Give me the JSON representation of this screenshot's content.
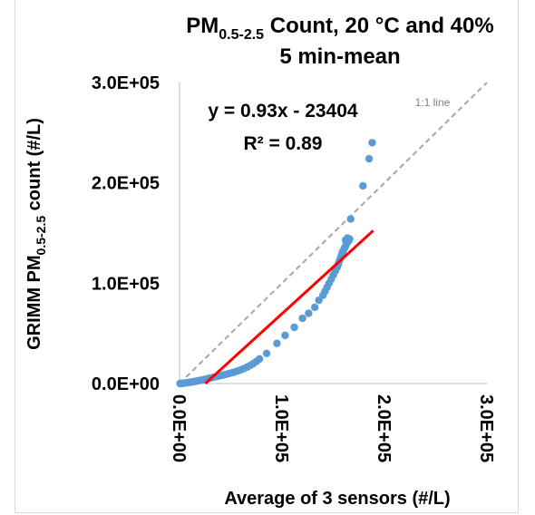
{
  "chart_data": {
    "type": "scatter",
    "title": {
      "line1_prefix": "PM",
      "line1_sub": "0.5-2.5",
      "line1_suffix": " Count, 20 °C and 40%",
      "line2": "5 min-mean"
    },
    "xlabel": "Average of 3 sensors (#/L)",
    "ylabel": {
      "prefix": "GRIMM PM",
      "sub": "0.5-2.5",
      "suffix": " count (#/L)"
    },
    "xlim": [
      0,
      300000
    ],
    "ylim": [
      0,
      300000
    ],
    "x_ticks": [
      0,
      100000,
      200000,
      300000
    ],
    "x_tick_labels": [
      "0.0E+00",
      "1.0E+05",
      "2.0E+05",
      "3.0E+05"
    ],
    "y_ticks": [
      0,
      100000,
      200000,
      300000
    ],
    "y_tick_labels": [
      "0.0E+00",
      "1.0E+05",
      "2.0E+05",
      "3.0E+05"
    ],
    "grid": false,
    "series": [
      {
        "marker_color": "#5b9bd5",
        "x": [
          500,
          2000,
          4000,
          6000,
          8000,
          10000,
          12000,
          14000,
          16000,
          18000,
          20000,
          22000,
          24000,
          26000,
          28000,
          30000,
          33000,
          36000,
          39000,
          42000,
          45000,
          48000,
          51000,
          54000,
          57000,
          60000,
          63000,
          66000,
          69000,
          72000,
          75000,
          78000,
          85000,
          95000,
          103000,
          112000,
          120000,
          126000,
          132000,
          136000,
          140000,
          142000,
          144000,
          146000,
          148000,
          150000,
          152000,
          154000,
          155000,
          156000,
          157000,
          158000,
          159000,
          160000,
          161000,
          162000,
          163000,
          164000,
          165000,
          162000,
          166000,
          164000,
          167000,
          179000,
          185000,
          188000
        ],
        "y": [
          0,
          0,
          300,
          600,
          900,
          1200,
          1500,
          1900,
          2300,
          2700,
          3100,
          3500,
          4000,
          4500,
          5000,
          5500,
          6200,
          6900,
          7600,
          8300,
          9100,
          9900,
          10700,
          11600,
          12600,
          13700,
          15000,
          16400,
          18000,
          19800,
          22000,
          24500,
          30000,
          40000,
          48000,
          56000,
          65000,
          70000,
          76000,
          83000,
          88000,
          92000,
          96000,
          100000,
          104000,
          108000,
          112000,
          116000,
          119000,
          122000,
          125000,
          128000,
          131000,
          133000,
          135000,
          137000,
          139000,
          141000,
          142000,
          143000,
          144000,
          145000,
          164000,
          197000,
          224000,
          240000
        ]
      }
    ],
    "trendline": {
      "color": "#ff0000",
      "equation": "y = 0.93x - 23404",
      "r2": "R² = 0.89",
      "x_start": 25166,
      "x_end": 189000
    },
    "reference_line": {
      "label": "1:1 line",
      "color": "#a6a6a6"
    },
    "legend": "none"
  }
}
